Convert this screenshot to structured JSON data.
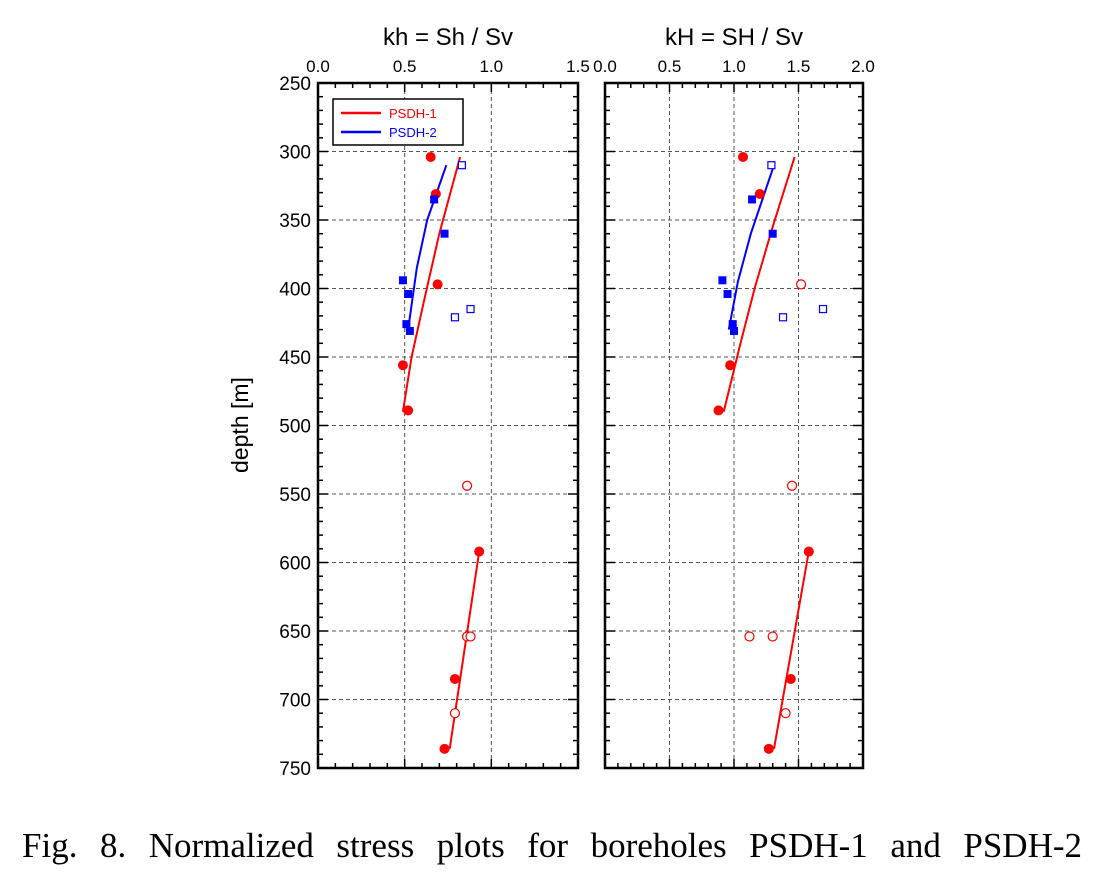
{
  "caption": "Fig. 8. Normalized stress plots for boreholes PSDH-1 and PSDH-2",
  "colors": {
    "PSDH-1": "#ff0000",
    "PSDH-2": "#0000ff",
    "grid": "#555555",
    "axis": "#000000"
  },
  "chart_data": [
    {
      "type": "scatter",
      "title": "kh = Sh / Sv",
      "ylabel": "depth [m]",
      "xlabel": "",
      "xlim": [
        0,
        1.5
      ],
      "ylim": [
        250,
        750
      ],
      "y_inverted": true,
      "xticks": [
        "0.0",
        "0.5",
        "1.0",
        "1.5"
      ],
      "yticks": [
        "250",
        "300",
        "350",
        "400",
        "450",
        "500",
        "550",
        "600",
        "650",
        "700",
        "750"
      ],
      "grid": true,
      "legend": {
        "placement": "top-left",
        "entries": [
          "PSDH-1",
          "PSDH-2"
        ]
      },
      "series": [
        {
          "name": "PSDH-1",
          "color": "#ff0000",
          "kind": "filled-circle",
          "points": [
            [
              0.65,
              304
            ],
            [
              0.68,
              331
            ],
            [
              0.69,
              397
            ],
            [
              0.49,
              456
            ],
            [
              0.52,
              489
            ],
            [
              0.93,
              592
            ],
            [
              0.79,
              685
            ],
            [
              0.73,
              736
            ]
          ]
        },
        {
          "name": "PSDH-1",
          "color": "#ff0000",
          "kind": "open-circle",
          "points": [
            [
              0.86,
              544
            ],
            [
              0.86,
              654
            ],
            [
              0.88,
              654
            ],
            [
              0.79,
              710
            ]
          ]
        },
        {
          "name": "PSDH-1",
          "color": "#ff0000",
          "kind": "trend-line",
          "points": [
            [
              0.82,
              304
            ],
            [
              0.7,
              360
            ],
            [
              0.61,
              410
            ],
            [
              0.54,
              450
            ],
            [
              0.49,
              490
            ]
          ]
        },
        {
          "name": "PSDH-1",
          "color": "#ff0000",
          "kind": "trend-line",
          "points": [
            [
              0.93,
              592
            ],
            [
              0.76,
              736
            ]
          ]
        },
        {
          "name": "PSDH-2",
          "color": "#0000ff",
          "kind": "filled-square",
          "points": [
            [
              0.67,
              335
            ],
            [
              0.73,
              360
            ],
            [
              0.49,
              394
            ],
            [
              0.52,
              404
            ],
            [
              0.51,
              426
            ],
            [
              0.53,
              431
            ]
          ]
        },
        {
          "name": "PSDH-2",
          "color": "#0000ff",
          "kind": "open-square",
          "points": [
            [
              0.83,
              310
            ],
            [
              0.88,
              415
            ],
            [
              0.79,
              421
            ]
          ]
        },
        {
          "name": "PSDH-2",
          "color": "#0000ff",
          "kind": "trend-line",
          "points": [
            [
              0.74,
              310
            ],
            [
              0.63,
              350
            ],
            [
              0.57,
              385
            ],
            [
              0.52,
              430
            ]
          ]
        }
      ]
    },
    {
      "type": "scatter",
      "title": "kH = SH / Sv",
      "xlabel": "",
      "xlim": [
        0,
        2.0
      ],
      "ylim": [
        250,
        750
      ],
      "y_inverted": true,
      "xticks": [
        "0.0",
        "0.5",
        "1.0",
        "1.5",
        "2.0"
      ],
      "grid": true,
      "series": [
        {
          "name": "PSDH-1",
          "color": "#ff0000",
          "kind": "filled-circle",
          "points": [
            [
              1.07,
              304
            ],
            [
              1.2,
              331
            ],
            [
              0.97,
              456
            ],
            [
              0.88,
              489
            ],
            [
              1.58,
              592
            ],
            [
              1.44,
              685
            ],
            [
              1.27,
              736
            ]
          ]
        },
        {
          "name": "PSDH-1",
          "color": "#ff0000",
          "kind": "open-circle",
          "points": [
            [
              1.52,
              397
            ],
            [
              1.45,
              544
            ],
            [
              1.12,
              654
            ],
            [
              1.3,
              654
            ],
            [
              1.4,
              710
            ]
          ]
        },
        {
          "name": "PSDH-1",
          "color": "#ff0000",
          "kind": "trend-line",
          "points": [
            [
              1.47,
              304
            ],
            [
              1.3,
              355
            ],
            [
              1.16,
              400
            ],
            [
              1.05,
              440
            ],
            [
              0.92,
              490
            ]
          ]
        },
        {
          "name": "PSDH-1",
          "color": "#ff0000",
          "kind": "trend-line",
          "points": [
            [
              1.58,
              592
            ],
            [
              1.31,
              736
            ]
          ]
        },
        {
          "name": "PSDH-2",
          "color": "#0000ff",
          "kind": "filled-square",
          "points": [
            [
              1.14,
              335
            ],
            [
              1.3,
              360
            ],
            [
              0.91,
              394
            ],
            [
              0.95,
              404
            ],
            [
              0.99,
              426
            ],
            [
              1.0,
              431
            ]
          ]
        },
        {
          "name": "PSDH-2",
          "color": "#0000ff",
          "kind": "open-square",
          "points": [
            [
              1.29,
              310
            ],
            [
              1.69,
              415
            ],
            [
              1.38,
              421
            ]
          ]
        },
        {
          "name": "PSDH-2",
          "color": "#0000ff",
          "kind": "trend-line",
          "points": [
            [
              1.31,
              310
            ],
            [
              1.13,
              360
            ],
            [
              1.03,
              395
            ],
            [
              0.96,
              430
            ]
          ]
        }
      ]
    }
  ]
}
